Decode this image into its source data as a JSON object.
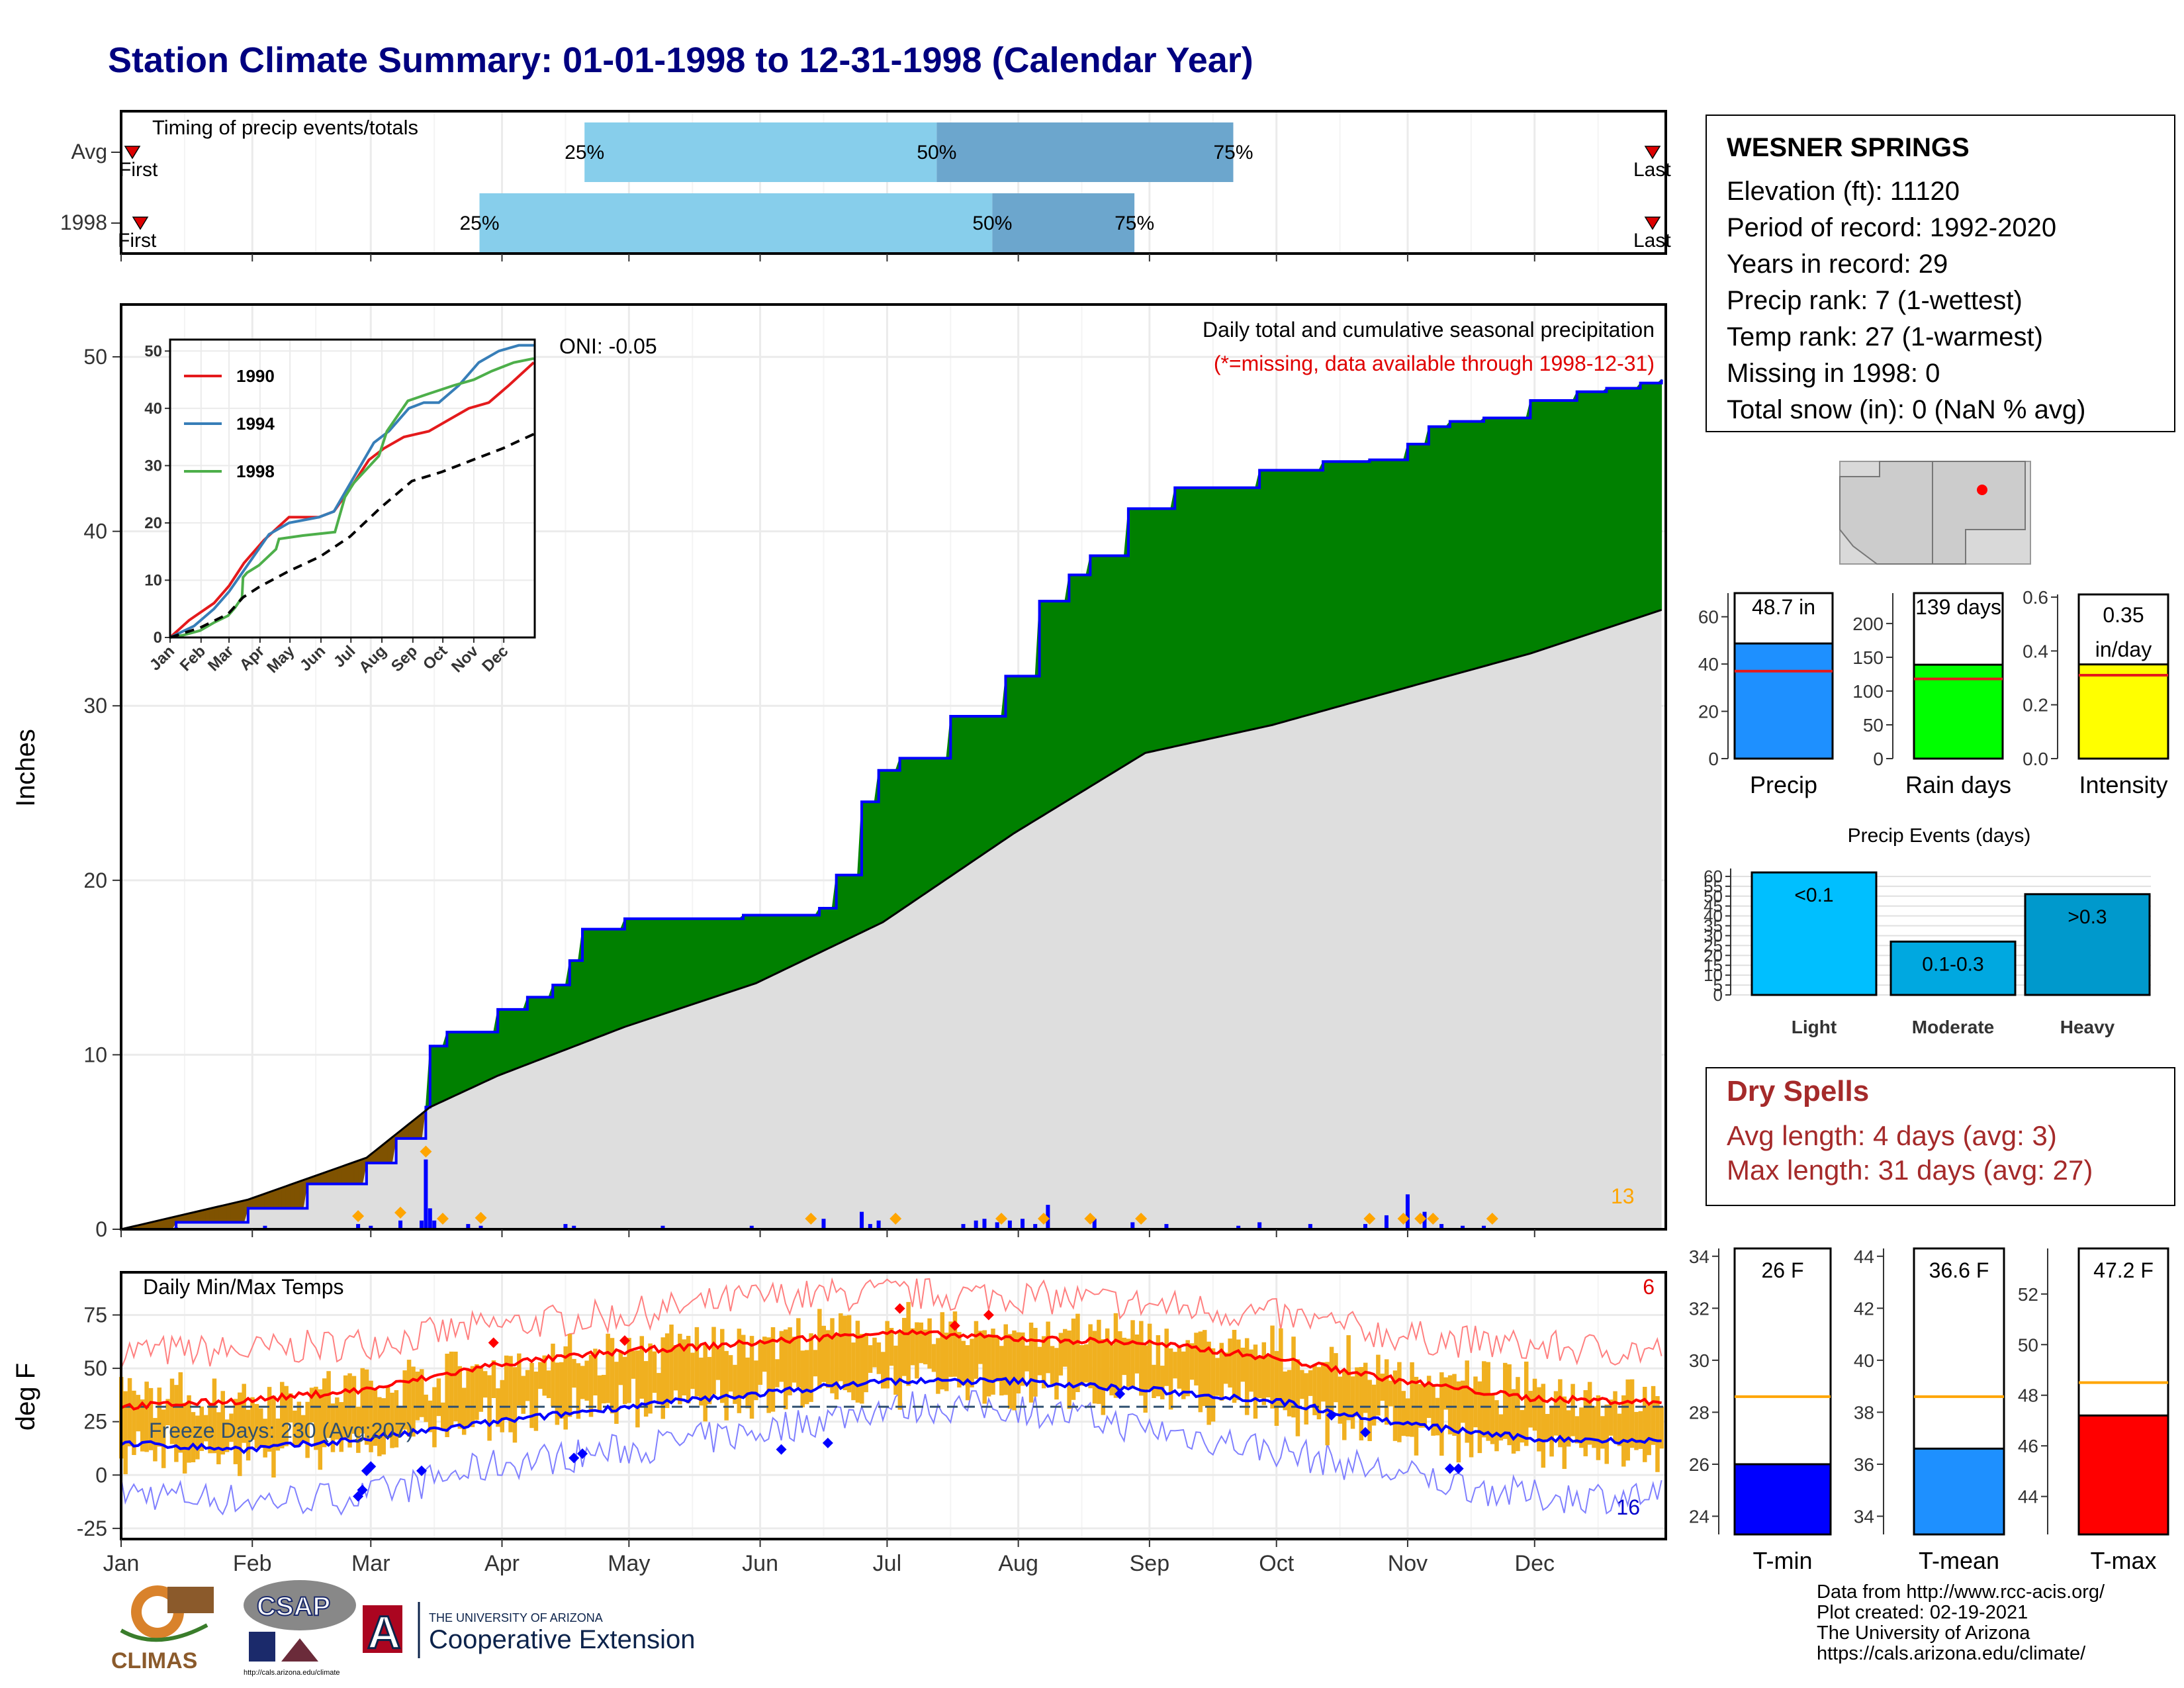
{
  "title": "Station Climate Summary: 01-01-1998 to 12-31-1998 (Calendar Year)",
  "colors": {
    "title": "#000080",
    "precip_total": "#1e90ff",
    "rain_days": "#00ff00",
    "intensity": "#ffff00",
    "avg_line": "#e41a1c",
    "cum_surplus": "#008000",
    "cum_deficit": "#7f5200",
    "cum_avg_fill": "#dedede",
    "daily_bars": "#0000ff",
    "temp_bars": "#f0b020",
    "tmax_line": "#ff0000",
    "tmin_line": "#0000ff",
    "dry_spells": "#a52a2a",
    "tmin_bar": "#0000ff",
    "tmean_bar": "#1e90ff",
    "tmax_bar": "#ff0000",
    "temp_avg_line": "#ffa500",
    "events_light": "#00bfff",
    "events_moderate": "#00a8e0",
    "events_heavy": "#0099cc"
  },
  "station": {
    "name": "WESNER SPRINGS",
    "lines": [
      "Elevation (ft): 11120",
      "Period of record: 1992-2020",
      "Years in record: 29",
      "Precip rank: 7 (1-wettest)",
      "Temp rank: 27 (1-warmest)",
      "Missing in 1998: 0",
      "Total snow (in): 0 (NaN % avg)"
    ]
  },
  "dry_spells": {
    "title": "Dry Spells",
    "avg_line": "Avg length: 4 days (avg: 3)",
    "max_line": "Max length: 31 days (avg: 27)"
  },
  "credits": [
    "Data from http://www.rcc-acis.org/",
    "Plot created: 02-19-2021",
    "The University of Arizona",
    "https://cals.arizona.edu/climate/"
  ],
  "logos": {
    "climas": "CLIMAS",
    "csap": "CSAP",
    "csap_url": "http://cals.arizona.edu/climate",
    "ua_line1": "THE UNIVERSITY OF ARIZONA",
    "ua_line2": "Cooperative Extension",
    "ua_letter": "A"
  },
  "months": [
    "Jan",
    "Feb",
    "Mar",
    "Apr",
    "May",
    "Jun",
    "Jul",
    "Aug",
    "Sep",
    "Oct",
    "Nov",
    "Dec"
  ],
  "chart_data": [
    {
      "id": "timing",
      "type": "bar",
      "title": "Timing of precip events/totals",
      "rows": [
        {
          "label": "Avg",
          "first_label": "First",
          "last_label": "Last",
          "p25": 0.3,
          "p50": 0.528,
          "p75": 0.72
        },
        {
          "label": "1998",
          "first_label": "First",
          "last_label": "Last",
          "p25": 0.232,
          "p50": 0.564,
          "p75": 0.656
        }
      ],
      "quantile_labels": [
        "25%",
        "50%",
        "75%"
      ],
      "x_range_fraction_of_year": [
        0,
        1
      ]
    },
    {
      "id": "cumulative_precip",
      "type": "area",
      "title": "Daily total and cumulative seasonal precipitation",
      "subtitle": "(*=missing, data available through 1998-12-31)",
      "ylabel": "Inches",
      "ylim": [
        0,
        53
      ],
      "yticks": [
        0,
        10,
        20,
        30,
        40,
        50
      ],
      "oni": "ONI: -0.05",
      "count_label": "13",
      "cumulative_1998": {
        "doy": [
          1,
          14,
          31,
          45,
          59,
          66,
          73,
          74,
          78,
          90,
          97,
          103,
          107,
          110,
          120,
          134,
          148,
          166,
          170,
          176,
          180,
          185,
          197,
          210,
          218,
          225,
          230,
          239,
          250,
          259,
          270,
          285,
          296,
          305,
          310,
          315,
          323,
          334,
          345,
          352,
          360,
          365
        ],
        "inches": [
          0,
          0.4,
          1.2,
          2.6,
          3.8,
          5.2,
          7.0,
          10.5,
          11.3,
          12.6,
          13.3,
          14.0,
          15.4,
          17.2,
          17.8,
          17.8,
          18.0,
          18.4,
          20.3,
          24.5,
          26.3,
          27.0,
          29.4,
          31.7,
          36.0,
          37.5,
          38.6,
          41.3,
          42.5,
          42.5,
          43.5,
          44.0,
          44.1,
          45.0,
          46.0,
          46.3,
          46.5,
          47.5,
          48.0,
          48.2,
          48.5,
          48.7
        ]
      },
      "cumulative_avg": {
        "doy": [
          1,
          31,
          59,
          74,
          90,
          120,
          151,
          181,
          212,
          243,
          273,
          304,
          334,
          365
        ],
        "inches": [
          0,
          1.7,
          4.1,
          7.0,
          8.8,
          11.6,
          14.1,
          17.6,
          22.7,
          27.3,
          28.9,
          31.0,
          33.0,
          35.5
        ]
      },
      "daily_totals": {
        "doy": [
          14,
          35,
          57,
          60,
          67,
          72,
          73,
          74,
          75,
          83,
          86,
          106,
          108,
          129,
          150,
          167,
          176,
          178,
          180,
          200,
          203,
          205,
          208,
          211,
          214,
          217,
          220,
          231,
          240,
          248,
          265,
          270,
          282,
          295,
          300,
          305,
          309,
          313,
          318,
          323
        ],
        "inches": [
          0.1,
          0.2,
          0.3,
          0.2,
          0.5,
          0.5,
          4.0,
          1.2,
          0.5,
          0.3,
          0.2,
          0.3,
          0.2,
          0.2,
          0.2,
          0.6,
          1.0,
          0.3,
          0.5,
          0.3,
          0.5,
          0.6,
          0.4,
          0.5,
          0.6,
          0.3,
          1.4,
          0.6,
          0.4,
          0.3,
          0.2,
          0.4,
          0.3,
          0.3,
          0.8,
          2.0,
          1.0,
          0.3,
          0.2,
          0.2
        ]
      },
      "extreme_markers_doy": [
        57,
        67,
        73,
        77,
        86,
        164,
        184,
        209,
        219,
        230,
        242,
        296,
        304,
        308,
        311,
        325
      ],
      "inset": {
        "type": "line",
        "ylim": [
          0,
          52
        ],
        "yticks": [
          0,
          10,
          20,
          30,
          40,
          50
        ],
        "series": [
          {
            "name": "1990",
            "color": "#e41a1c",
            "x": [
              1,
              20,
              45,
              60,
              75,
              95,
              120,
              150,
              165,
              185,
              200,
              215,
              235,
              260,
              280,
              300,
              320,
              340,
              365
            ],
            "y": [
              0,
              3,
              6,
              9,
              13,
              17,
              21,
              21,
              22,
              27,
              31,
              33,
              35,
              36,
              38,
              40,
              41,
              44,
              48
            ]
          },
          {
            "name": "1994",
            "color": "#377eb8",
            "x": [
              1,
              25,
              45,
              60,
              80,
              100,
              120,
              150,
              165,
              185,
              205,
              220,
              240,
              255,
              270,
              290,
              310,
              330,
              350,
              365
            ],
            "y": [
              0,
              2,
              5,
              8,
              13,
              18,
              20,
              21,
              22,
              28,
              34,
              36,
              40,
              41,
              41,
              44,
              48,
              50,
              51,
              51
            ]
          },
          {
            "name": "1998",
            "color": "#4daf4a",
            "x": [
              1,
              14,
              31,
              45,
              59,
              66,
              73,
              74,
              78,
              90,
              107,
              110,
              134,
              166,
              176,
              185,
              210,
              218,
              239,
              259,
              285,
              305,
              323,
              345,
              365
            ],
            "y": [
              0,
              0.4,
              1.2,
              2.6,
              3.8,
              5.2,
              7,
              10.5,
              11.3,
              12.6,
              15.4,
              17.2,
              17.8,
              18.4,
              24.5,
              27,
              31.7,
              36,
              41.3,
              42.5,
              44,
              45,
              46.5,
              48,
              48.7
            ]
          },
          {
            "name": "avg",
            "color": "#000000",
            "dash": true,
            "x": [
              1,
              31,
              59,
              74,
              90,
              120,
              151,
              181,
              212,
              243,
              273,
              304,
              334,
              365
            ],
            "y": [
              0,
              1.7,
              4.1,
              7,
              8.8,
              11.6,
              14.1,
              17.6,
              22.7,
              27.3,
              28.9,
              31,
              33,
              35.5
            ]
          }
        ],
        "legend": [
          "1990",
          "1994",
          "1998"
        ]
      }
    },
    {
      "id": "temps",
      "type": "line",
      "title": "Daily Min/Max Temps",
      "ylabel": "deg F",
      "ylim": [
        -30,
        95
      ],
      "yticks": [
        -25,
        0,
        25,
        50,
        75
      ],
      "freeze_days": "Freeze Days: 230 (Avg:207)",
      "count_hot": "6",
      "count_cold": "16",
      "tmax_smooth": {
        "doy": [
          1,
          31,
          59,
          90,
          120,
          151,
          181,
          212,
          243,
          273,
          304,
          334,
          365
        ],
        "f": [
          32,
          35,
          40,
          52,
          58,
          62,
          67,
          64,
          62,
          55,
          44,
          36,
          34
        ]
      },
      "tmin_smooth": {
        "doy": [
          1,
          31,
          59,
          90,
          120,
          151,
          181,
          212,
          243,
          273,
          304,
          334,
          365
        ],
        "f": [
          15,
          12,
          17,
          25,
          32,
          38,
          44,
          44,
          40,
          35,
          24,
          17,
          16
        ]
      },
      "record_high_smooth": {
        "doy": [
          1,
          31,
          59,
          90,
          120,
          151,
          181,
          212,
          243,
          273,
          304,
          334,
          365
        ],
        "f": [
          58,
          58,
          62,
          70,
          75,
          83,
          85,
          84,
          80,
          75,
          65,
          60,
          58
        ]
      },
      "record_low_smooth": {
        "doy": [
          1,
          31,
          59,
          90,
          120,
          151,
          181,
          212,
          243,
          273,
          304,
          334,
          365
        ],
        "f": [
          -8,
          -12,
          -10,
          5,
          12,
          20,
          32,
          32,
          22,
          12,
          0,
          -10,
          -10
        ]
      },
      "freeze_line_f": 32
    },
    {
      "id": "totals_bars",
      "type": "bar",
      "panels": [
        {
          "name": "Precip",
          "value": 48.7,
          "value_label": "48.7 in",
          "avg": 37,
          "ylim": [
            0,
            70
          ],
          "yticks": [
            0,
            20,
            40,
            60
          ]
        },
        {
          "name": "Rain days",
          "value": 139,
          "value_label": "139 days",
          "avg": 118,
          "ylim": [
            0,
            245
          ],
          "yticks": [
            0,
            50,
            100,
            150,
            200
          ]
        },
        {
          "name": "Intensity",
          "value": 0.35,
          "value_label": "0.35 in/day",
          "avg": 0.31,
          "ylim": [
            0,
            0.61
          ],
          "yticks": [
            0.0,
            0.2,
            0.4,
            0.6
          ]
        }
      ]
    },
    {
      "id": "precip_events",
      "type": "bar",
      "title": "Precip Events (days)",
      "categories": [
        "Light",
        "Moderate",
        "Heavy"
      ],
      "category_labels": [
        "<0.1",
        "0.1-0.3",
        ">0.3"
      ],
      "values": [
        62,
        27,
        51
      ],
      "ylim": [
        0,
        64
      ],
      "yticks": [
        0,
        5,
        10,
        15,
        20,
        25,
        30,
        35,
        40,
        45,
        50,
        55,
        60
      ]
    },
    {
      "id": "temp_bars",
      "type": "bar",
      "panels": [
        {
          "name": "T-min",
          "value": 26,
          "value_label": "26 F",
          "avg": 28.6,
          "ylim": [
            23.3,
            34.3
          ],
          "yticks": [
            24,
            26,
            28,
            30,
            32,
            34
          ]
        },
        {
          "name": "T-mean",
          "value": 36.6,
          "value_label": "36.6 F",
          "avg": 38.6,
          "ylim": [
            33.3,
            44.3
          ],
          "yticks": [
            34,
            36,
            38,
            40,
            42,
            44
          ]
        },
        {
          "name": "T-max",
          "value": 47.2,
          "value_label": "47.2 F",
          "avg": 48.5,
          "ylim": [
            42.5,
            53.8
          ],
          "yticks": [
            44,
            46,
            48,
            50,
            52
          ]
        }
      ]
    }
  ]
}
